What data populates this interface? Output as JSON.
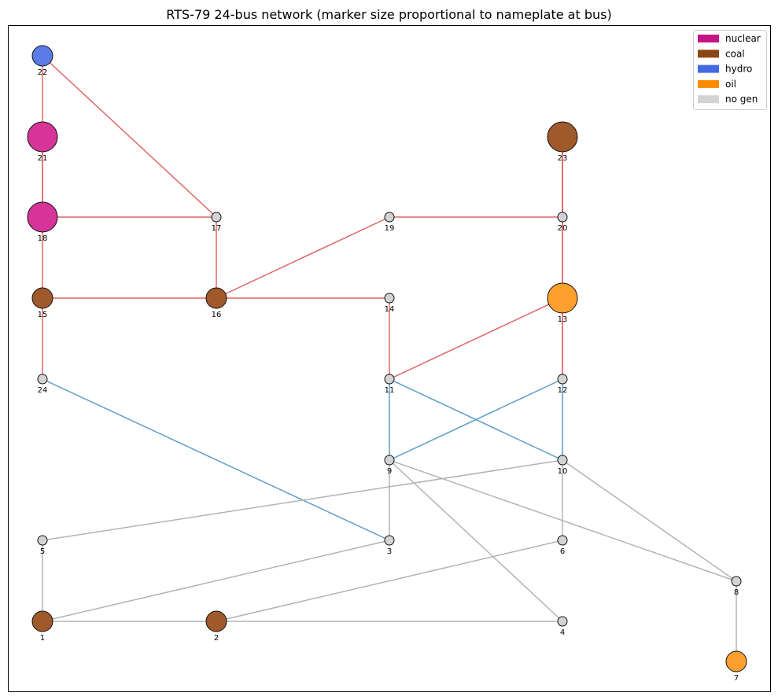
{
  "title": "RTS-79 24-bus network (marker size proportional to nameplate at bus)",
  "legend": {
    "placement": "top-right",
    "items": [
      {
        "label": "nuclear",
        "color": "#c71585"
      },
      {
        "label": "coal",
        "color": "#8b4513"
      },
      {
        "label": "hydro",
        "color": "#4169e1"
      },
      {
        "label": "oil",
        "color": "#ff8c00"
      },
      {
        "label": "no gen",
        "color": "#d3d3d3"
      }
    ]
  },
  "edge_colors": {
    "red": "#e06666",
    "blue": "#5b9ec9",
    "gray": "#b3b3b3"
  },
  "buses": [
    {
      "id": "1",
      "gen": "coal",
      "size": "medium"
    },
    {
      "id": "2",
      "gen": "coal",
      "size": "medium"
    },
    {
      "id": "3",
      "gen": "no gen",
      "size": "small"
    },
    {
      "id": "4",
      "gen": "no gen",
      "size": "small"
    },
    {
      "id": "5",
      "gen": "no gen",
      "size": "small"
    },
    {
      "id": "6",
      "gen": "no gen",
      "size": "small"
    },
    {
      "id": "7",
      "gen": "oil",
      "size": "medium"
    },
    {
      "id": "8",
      "gen": "no gen",
      "size": "small"
    },
    {
      "id": "9",
      "gen": "no gen",
      "size": "small"
    },
    {
      "id": "10",
      "gen": "no gen",
      "size": "small"
    },
    {
      "id": "11",
      "gen": "no gen",
      "size": "small"
    },
    {
      "id": "12",
      "gen": "no gen",
      "size": "small"
    },
    {
      "id": "13",
      "gen": "oil",
      "size": "large"
    },
    {
      "id": "14",
      "gen": "no gen",
      "size": "small"
    },
    {
      "id": "15",
      "gen": "coal",
      "size": "medium"
    },
    {
      "id": "16",
      "gen": "coal",
      "size": "medium"
    },
    {
      "id": "17",
      "gen": "no gen",
      "size": "small"
    },
    {
      "id": "18",
      "gen": "nuclear",
      "size": "large"
    },
    {
      "id": "19",
      "gen": "no gen",
      "size": "small"
    },
    {
      "id": "20",
      "gen": "no gen",
      "size": "small"
    },
    {
      "id": "21",
      "gen": "nuclear",
      "size": "large"
    },
    {
      "id": "22",
      "gen": "hydro",
      "size": "medium"
    },
    {
      "id": "23",
      "gen": "coal",
      "size": "large"
    },
    {
      "id": "24",
      "gen": "no gen",
      "size": "small"
    }
  ],
  "branches": [
    {
      "from": "1",
      "to": "2",
      "class": "gray"
    },
    {
      "from": "1",
      "to": "3",
      "class": "gray"
    },
    {
      "from": "1",
      "to": "5",
      "class": "gray"
    },
    {
      "from": "2",
      "to": "4",
      "class": "gray"
    },
    {
      "from": "2",
      "to": "6",
      "class": "gray"
    },
    {
      "from": "3",
      "to": "9",
      "class": "gray"
    },
    {
      "from": "3",
      "to": "24",
      "class": "blue"
    },
    {
      "from": "4",
      "to": "9",
      "class": "gray"
    },
    {
      "from": "5",
      "to": "10",
      "class": "gray"
    },
    {
      "from": "6",
      "to": "10",
      "class": "gray"
    },
    {
      "from": "7",
      "to": "8",
      "class": "gray"
    },
    {
      "from": "8",
      "to": "9",
      "class": "gray"
    },
    {
      "from": "8",
      "to": "10",
      "class": "gray"
    },
    {
      "from": "9",
      "to": "11",
      "class": "blue"
    },
    {
      "from": "9",
      "to": "12",
      "class": "blue"
    },
    {
      "from": "10",
      "to": "11",
      "class": "blue"
    },
    {
      "from": "10",
      "to": "12",
      "class": "blue"
    },
    {
      "from": "11",
      "to": "13",
      "class": "red"
    },
    {
      "from": "11",
      "to": "14",
      "class": "red"
    },
    {
      "from": "12",
      "to": "13",
      "class": "red"
    },
    {
      "from": "12",
      "to": "23",
      "class": "red"
    },
    {
      "from": "13",
      "to": "23",
      "class": "red"
    },
    {
      "from": "14",
      "to": "16",
      "class": "red"
    },
    {
      "from": "15",
      "to": "16",
      "class": "red"
    },
    {
      "from": "15",
      "to": "21",
      "class": "red"
    },
    {
      "from": "15",
      "to": "24",
      "class": "red"
    },
    {
      "from": "16",
      "to": "17",
      "class": "red"
    },
    {
      "from": "16",
      "to": "19",
      "class": "red"
    },
    {
      "from": "17",
      "to": "18",
      "class": "red"
    },
    {
      "from": "17",
      "to": "22",
      "class": "red"
    },
    {
      "from": "18",
      "to": "21",
      "class": "red"
    },
    {
      "from": "19",
      "to": "20",
      "class": "red"
    },
    {
      "from": "20",
      "to": "23",
      "class": "red"
    },
    {
      "from": "21",
      "to": "22",
      "class": "red"
    }
  ]
}
